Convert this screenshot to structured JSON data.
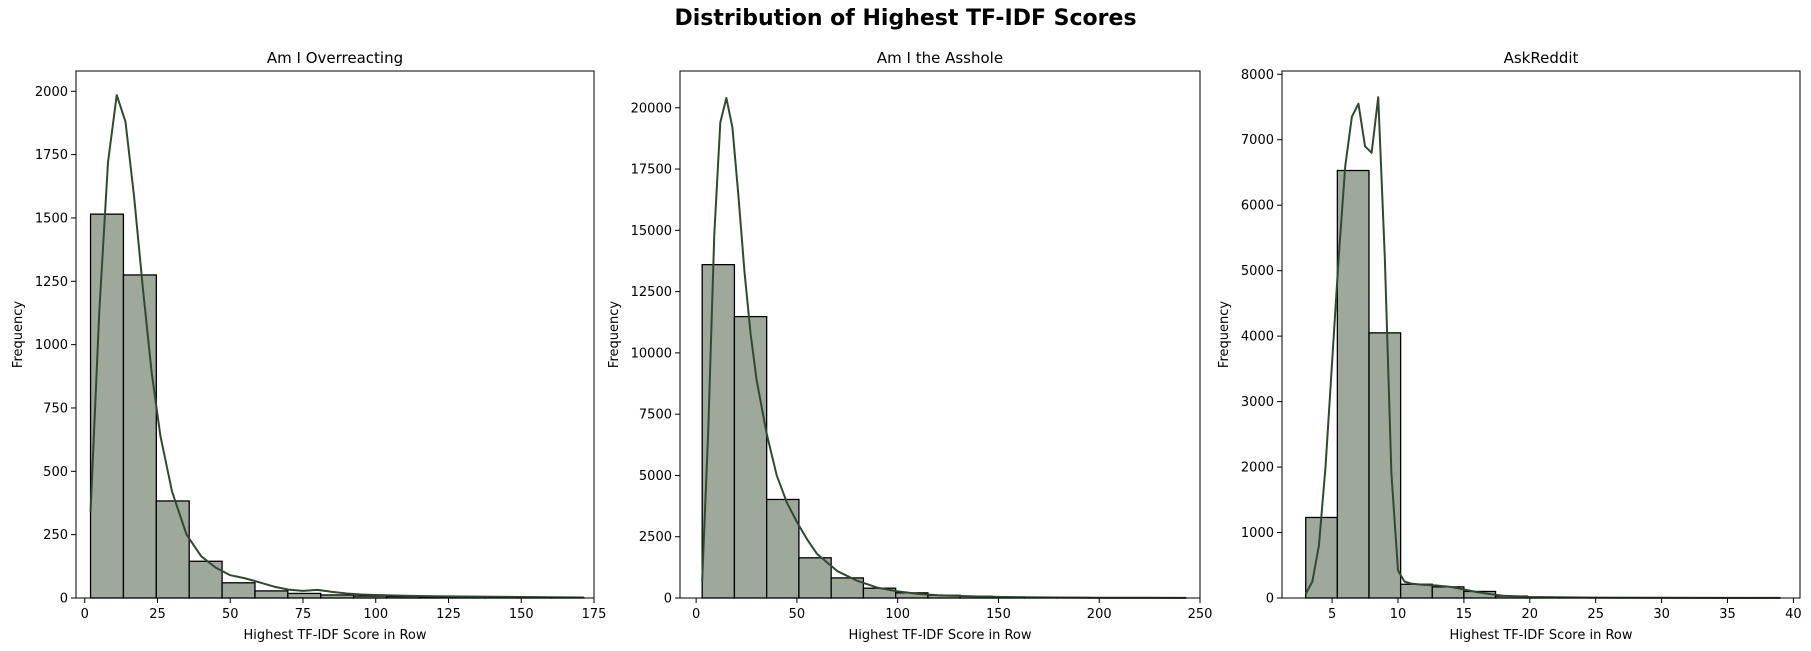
{
  "figure": {
    "title": "Distribution of Highest TF-IDF Scores"
  },
  "colors": {
    "bar_fill": "#9ea99c",
    "bar_edge": "#000000",
    "kde_line": "#2f4a2f"
  },
  "chart_data": [
    {
      "type": "bar",
      "subtype": "histogram_with_kde",
      "title": "Am I Overreacting",
      "xlabel": "Highest TF-IDF Score in Row",
      "ylabel": "Frequency",
      "xlim": [
        -3,
        175
      ],
      "ylim": [
        0,
        2080
      ],
      "xticks": [
        0,
        25,
        50,
        75,
        100,
        125,
        150,
        175
      ],
      "yticks": [
        0,
        250,
        500,
        750,
        1000,
        1250,
        1500,
        1750,
        2000
      ],
      "bin_edges": [
        2,
        13.3,
        24.6,
        35.9,
        47.2,
        58.5,
        69.8,
        81.1,
        92.4,
        103.7,
        115.0,
        126.3,
        137.6,
        148.9,
        160.2,
        171.5
      ],
      "values": [
        1515,
        1275,
        383,
        145,
        60,
        28,
        18,
        12,
        8,
        6,
        4,
        3,
        2,
        2,
        1
      ],
      "kde": {
        "x": [
          2,
          5,
          8,
          11,
          14,
          17,
          20,
          23,
          26,
          30,
          35,
          40,
          45,
          50,
          55,
          60,
          65,
          70,
          75,
          80,
          85,
          90,
          95,
          100,
          110,
          120,
          130,
          140,
          150,
          160,
          171.5
        ],
        "y": [
          340,
          1130,
          1720,
          1985,
          1880,
          1580,
          1220,
          890,
          640,
          420,
          250,
          165,
          120,
          90,
          78,
          62,
          45,
          33,
          28,
          32,
          24,
          18,
          14,
          12,
          9,
          7,
          6,
          5,
          4,
          3,
          2
        ]
      },
      "grid": false,
      "legend": false
    },
    {
      "type": "bar",
      "subtype": "histogram_with_kde",
      "title": "Am I the Asshole",
      "xlabel": "Highest TF-IDF Score in Row",
      "ylabel": "Frequency",
      "xlim": [
        -8,
        250
      ],
      "ylim": [
        0,
        21500
      ],
      "xticks": [
        0,
        50,
        100,
        150,
        200,
        250
      ],
      "yticks": [
        0,
        2500,
        5000,
        7500,
        10000,
        12500,
        15000,
        17500,
        20000
      ],
      "bin_edges": [
        3,
        19.0,
        35.0,
        51.0,
        67.0,
        83.0,
        99.0,
        115.0,
        131.0,
        147.0,
        163.0,
        179.0,
        195.0,
        211.0,
        227.0,
        243.0
      ],
      "values": [
        13600,
        11480,
        4020,
        1640,
        820,
        400,
        210,
        110,
        70,
        40,
        25,
        18,
        12,
        8,
        5
      ],
      "kde": {
        "x": [
          3,
          6,
          9,
          12,
          15,
          18,
          21,
          24,
          27,
          30,
          35,
          40,
          45,
          50,
          55,
          60,
          70,
          80,
          90,
          100,
          110,
          120,
          140,
          160,
          180,
          200,
          220,
          243
        ],
        "y": [
          700,
          6800,
          14800,
          19400,
          20400,
          19200,
          16400,
          13300,
          10800,
          8900,
          6700,
          5000,
          3900,
          3100,
          2400,
          1800,
          1100,
          700,
          420,
          270,
          170,
          110,
          60,
          30,
          18,
          12,
          8,
          5
        ]
      },
      "grid": false,
      "legend": false
    },
    {
      "type": "bar",
      "subtype": "histogram_with_kde",
      "title": "AskReddit",
      "xlabel": "Highest TF-IDF Score in Row",
      "ylabel": "Frequency",
      "xlim": [
        1.2,
        40.5
      ],
      "ylim": [
        0,
        8050
      ],
      "xticks": [
        5,
        10,
        15,
        20,
        25,
        30,
        35,
        40
      ],
      "yticks": [
        0,
        1000,
        2000,
        3000,
        4000,
        5000,
        6000,
        7000,
        8000
      ],
      "bin_edges": [
        3,
        5.4,
        7.8,
        10.2,
        12.6,
        15.0,
        17.4,
        19.8,
        22.2,
        24.6,
        27.0,
        29.4,
        31.8,
        34.2,
        36.6,
        39.0
      ],
      "values": [
        1230,
        6530,
        4050,
        210,
        170,
        100,
        30,
        10,
        6,
        4,
        3,
        2,
        2,
        1,
        1
      ],
      "kde": {
        "x": [
          3,
          3.5,
          4,
          4.5,
          5,
          5.5,
          6,
          6.5,
          7,
          7.5,
          8,
          8.5,
          9,
          9.5,
          10,
          10.5,
          11,
          12,
          13,
          14,
          15,
          16,
          17,
          18,
          20,
          25,
          30,
          35,
          39
        ],
        "y": [
          60,
          250,
          800,
          2000,
          3600,
          5200,
          6600,
          7350,
          7550,
          6900,
          6800,
          7650,
          5200,
          1900,
          420,
          250,
          220,
          200,
          190,
          170,
          130,
          90,
          60,
          35,
          15,
          6,
          3,
          2,
          1
        ]
      },
      "grid": false,
      "legend": false
    }
  ]
}
